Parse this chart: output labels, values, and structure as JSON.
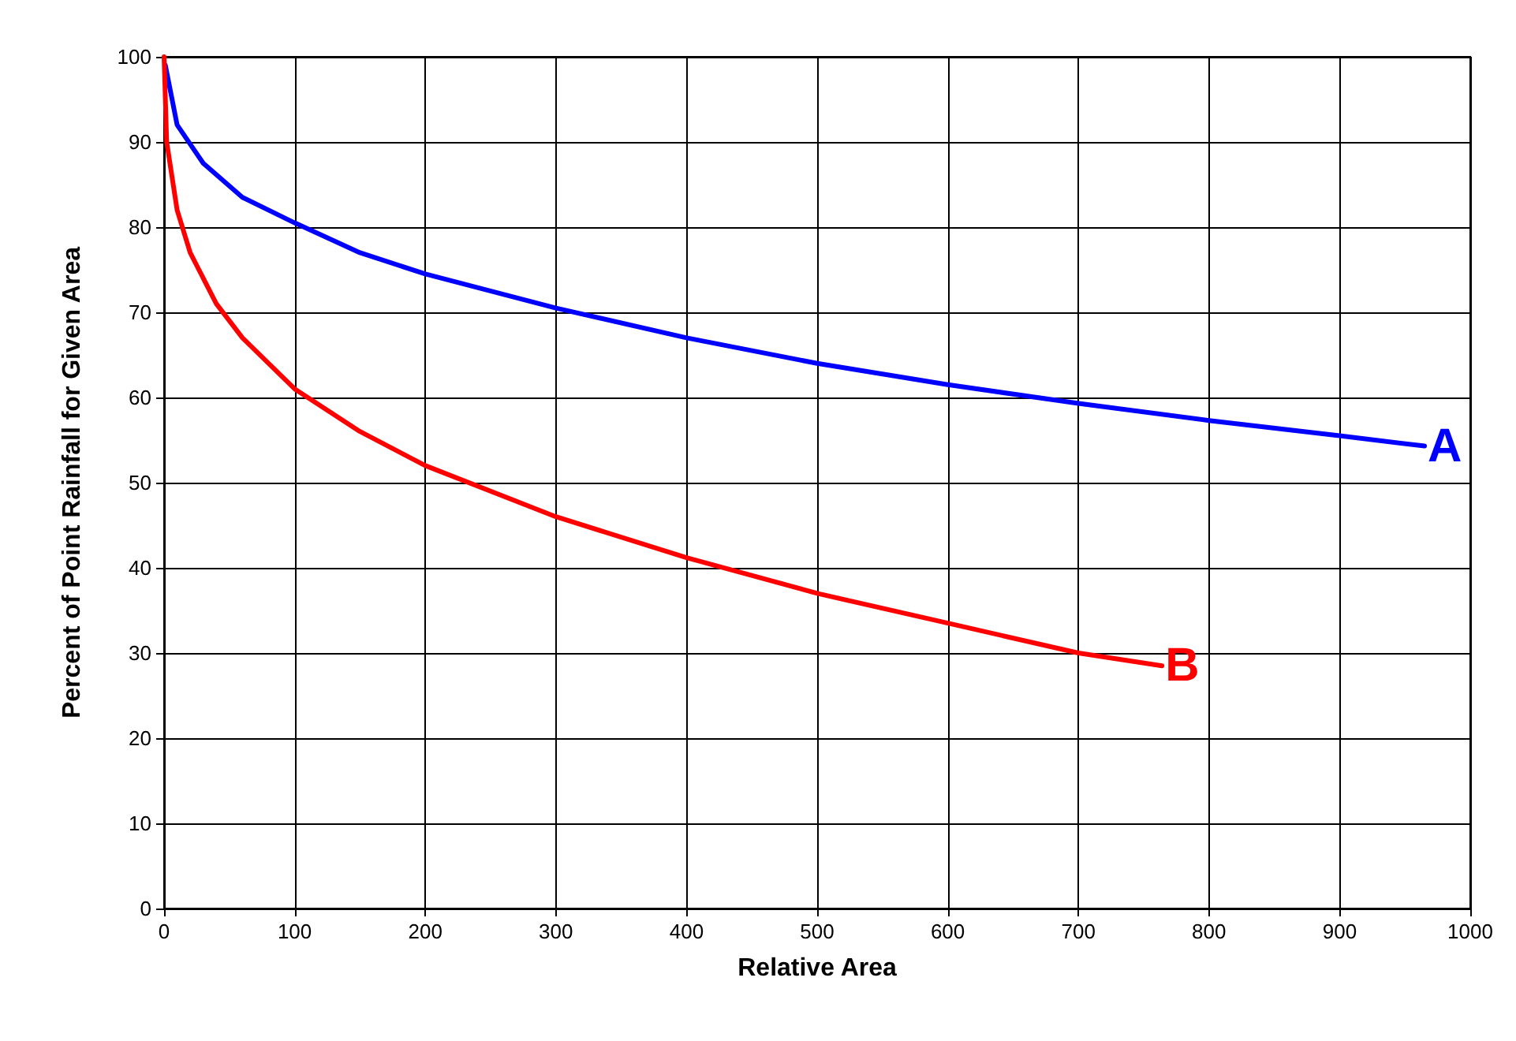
{
  "chart_data": {
    "type": "line",
    "xlabel": "Relative Area",
    "ylabel": "Percent of Point Rainfall for Given Area",
    "series": [
      {
        "name": "A",
        "color": "#0000ff",
        "x": [
          1,
          10,
          30,
          60,
          100,
          150,
          200,
          300,
          400,
          500,
          600,
          700,
          800,
          900,
          965
        ],
        "values": [
          99,
          92,
          87.5,
          83.5,
          80.5,
          77,
          74.5,
          70.5,
          67,
          64,
          61.5,
          59.3,
          57.3,
          55.5,
          54.3
        ]
      },
      {
        "name": "B",
        "color": "#ff0000",
        "x": [
          0,
          2,
          10,
          20,
          40,
          60,
          100,
          150,
          200,
          300,
          400,
          500,
          600,
          700,
          764
        ],
        "values": [
          100,
          90,
          82,
          77,
          71,
          67,
          61,
          56,
          52,
          46,
          41.2,
          37,
          33.5,
          30,
          28.5
        ]
      }
    ],
    "xlim": [
      0,
      1000
    ],
    "xticks": [
      0,
      100,
      200,
      300,
      400,
      500,
      600,
      700,
      800,
      900,
      1000
    ],
    "ylim": [
      0,
      100
    ],
    "yticks": [
      0,
      10,
      20,
      30,
      40,
      50,
      60,
      70,
      80,
      90,
      100
    ],
    "grid": true,
    "legend": false,
    "marker": "none",
    "line_style": "solid"
  }
}
